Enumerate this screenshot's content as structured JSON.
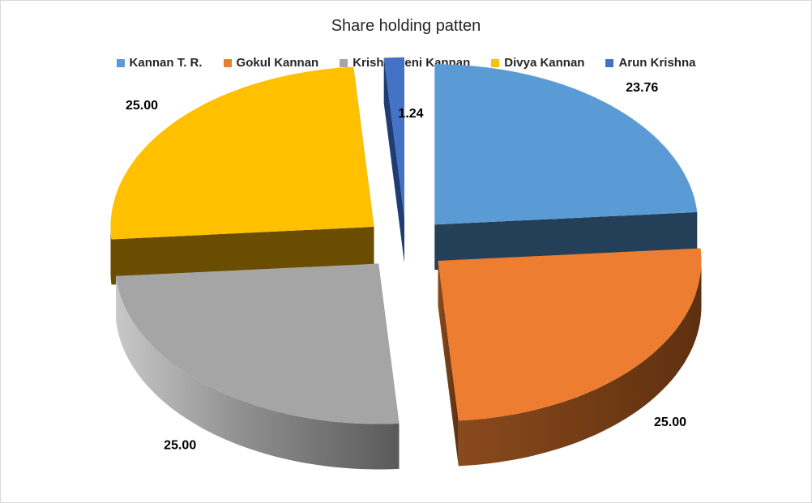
{
  "chart_data": {
    "type": "pie",
    "title": "Share holding patten",
    "legend_position": "top",
    "exploded": true,
    "three_d": true,
    "categories": [
      "Kannan T. R.",
      "Gokul Kannan",
      "Krishnaveni Kannan",
      "Divya Kannan",
      "Arun Krishna"
    ],
    "values": [
      23.76,
      25.0,
      25.0,
      25.0,
      1.24
    ],
    "data_labels": [
      "23.76",
      "25.00",
      "25.00",
      "25.00",
      "1.24"
    ],
    "colors": [
      "#5b9bd5",
      "#ed7d31",
      "#a5a5a5",
      "#ffc000",
      "#4472c4"
    ]
  }
}
